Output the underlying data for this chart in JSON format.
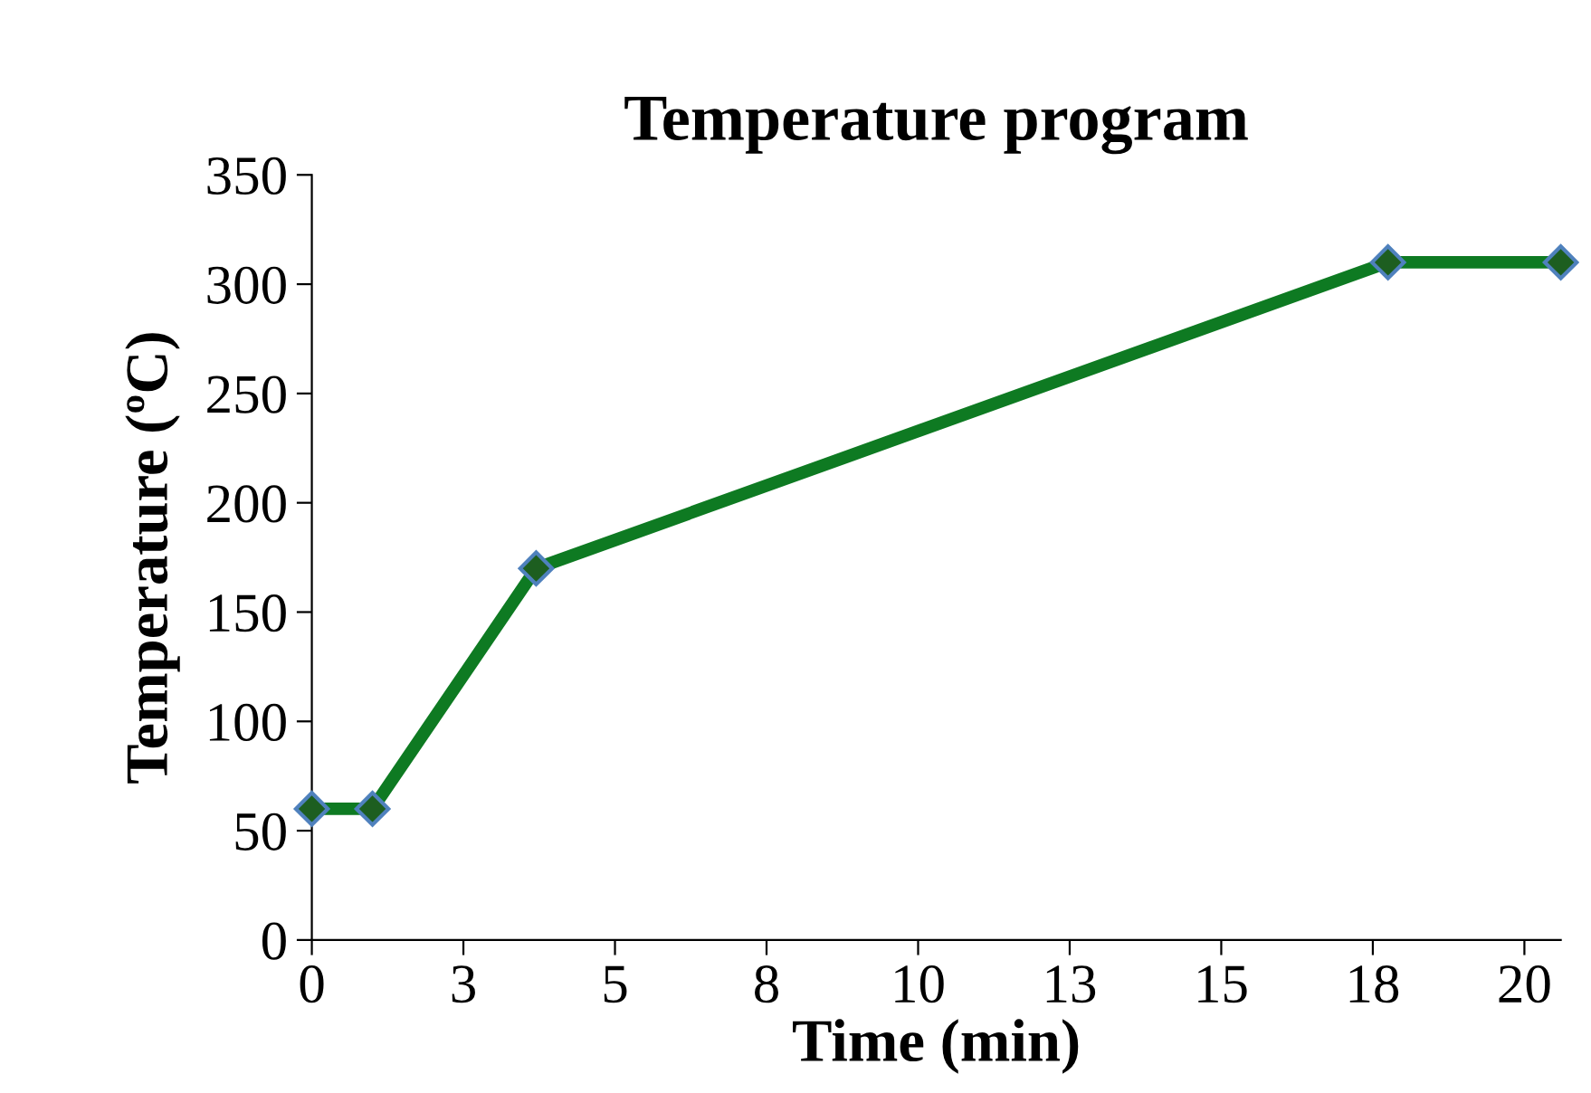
{
  "chart_data": {
    "type": "line",
    "title": "Temperature program",
    "xlabel": "Time (min)",
    "ylabel": "Temperature (ºC)",
    "x": [
      0,
      1,
      3.7,
      17.75,
      20.6
    ],
    "series": [
      {
        "color": "#0e7a22",
        "values": [
          60,
          60,
          170,
          310,
          310
        ]
      }
    ],
    "xlim": [
      0,
      20.6
    ],
    "xticks": [
      0,
      {
        "value": 2.5,
        "label": "3"
      },
      5,
      {
        "value": 7.5,
        "label": "8"
      },
      10,
      {
        "value": 12.5,
        "label": "13"
      },
      15,
      {
        "value": 17.5,
        "label": "18"
      },
      20
    ],
    "ylim": [
      0,
      350
    ],
    "yticks": [
      0,
      50,
      100,
      150,
      200,
      250,
      300,
      350
    ],
    "grid": false,
    "legend": false,
    "marker": "diamond",
    "line_style": "solid"
  }
}
